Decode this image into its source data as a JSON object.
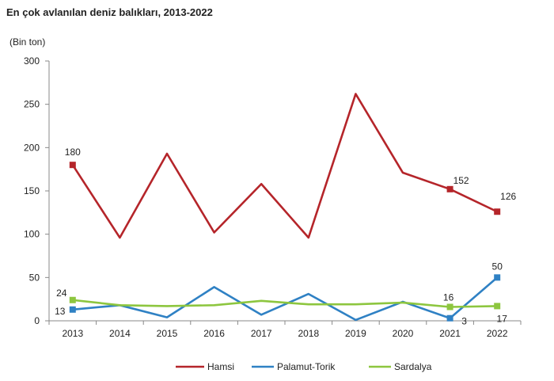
{
  "title": "En çok avlanılan deniz balıkları, 2013-2022",
  "unit_label": "(Bin ton)",
  "chart_data": {
    "type": "line",
    "title": "En çok avlanılan deniz balıkları, 2013-2022",
    "ylabel": "(Bin ton)",
    "xlabel": "",
    "categories": [
      "2013",
      "2014",
      "2015",
      "2016",
      "2017",
      "2018",
      "2019",
      "2020",
      "2021",
      "2022"
    ],
    "ylim": [
      0,
      300
    ],
    "yticks": [
      0,
      50,
      100,
      150,
      200,
      250,
      300
    ],
    "grid": false,
    "legend_position": "bottom",
    "series": [
      {
        "name": "Hamsi",
        "color": "#b5252a",
        "values": [
          180,
          96,
          193,
          102,
          158,
          96,
          262,
          171,
          152,
          126
        ],
        "markers": [
          0,
          8,
          9
        ],
        "labels": [
          {
            "index": 0,
            "text": "180"
          },
          {
            "index": 8,
            "text": "152"
          },
          {
            "index": 9,
            "text": "126"
          }
        ]
      },
      {
        "name": "Palamut-Torik",
        "color": "#2f81c4",
        "values": [
          13,
          18,
          4,
          39,
          7,
          31,
          1,
          22,
          3,
          50
        ],
        "markers": [
          0,
          8,
          9
        ],
        "labels": [
          {
            "index": 0,
            "text": "13"
          },
          {
            "index": 8,
            "text": "3"
          },
          {
            "index": 9,
            "text": "50"
          }
        ]
      },
      {
        "name": "Sardalya",
        "color": "#8dc63f",
        "values": [
          24,
          18,
          17,
          18,
          23,
          19,
          19,
          21,
          16,
          17
        ],
        "markers": [
          0,
          8,
          9
        ],
        "labels": [
          {
            "index": 0,
            "text": "24"
          },
          {
            "index": 8,
            "text": "16"
          },
          {
            "index": 9,
            "text": "17"
          }
        ]
      }
    ]
  }
}
